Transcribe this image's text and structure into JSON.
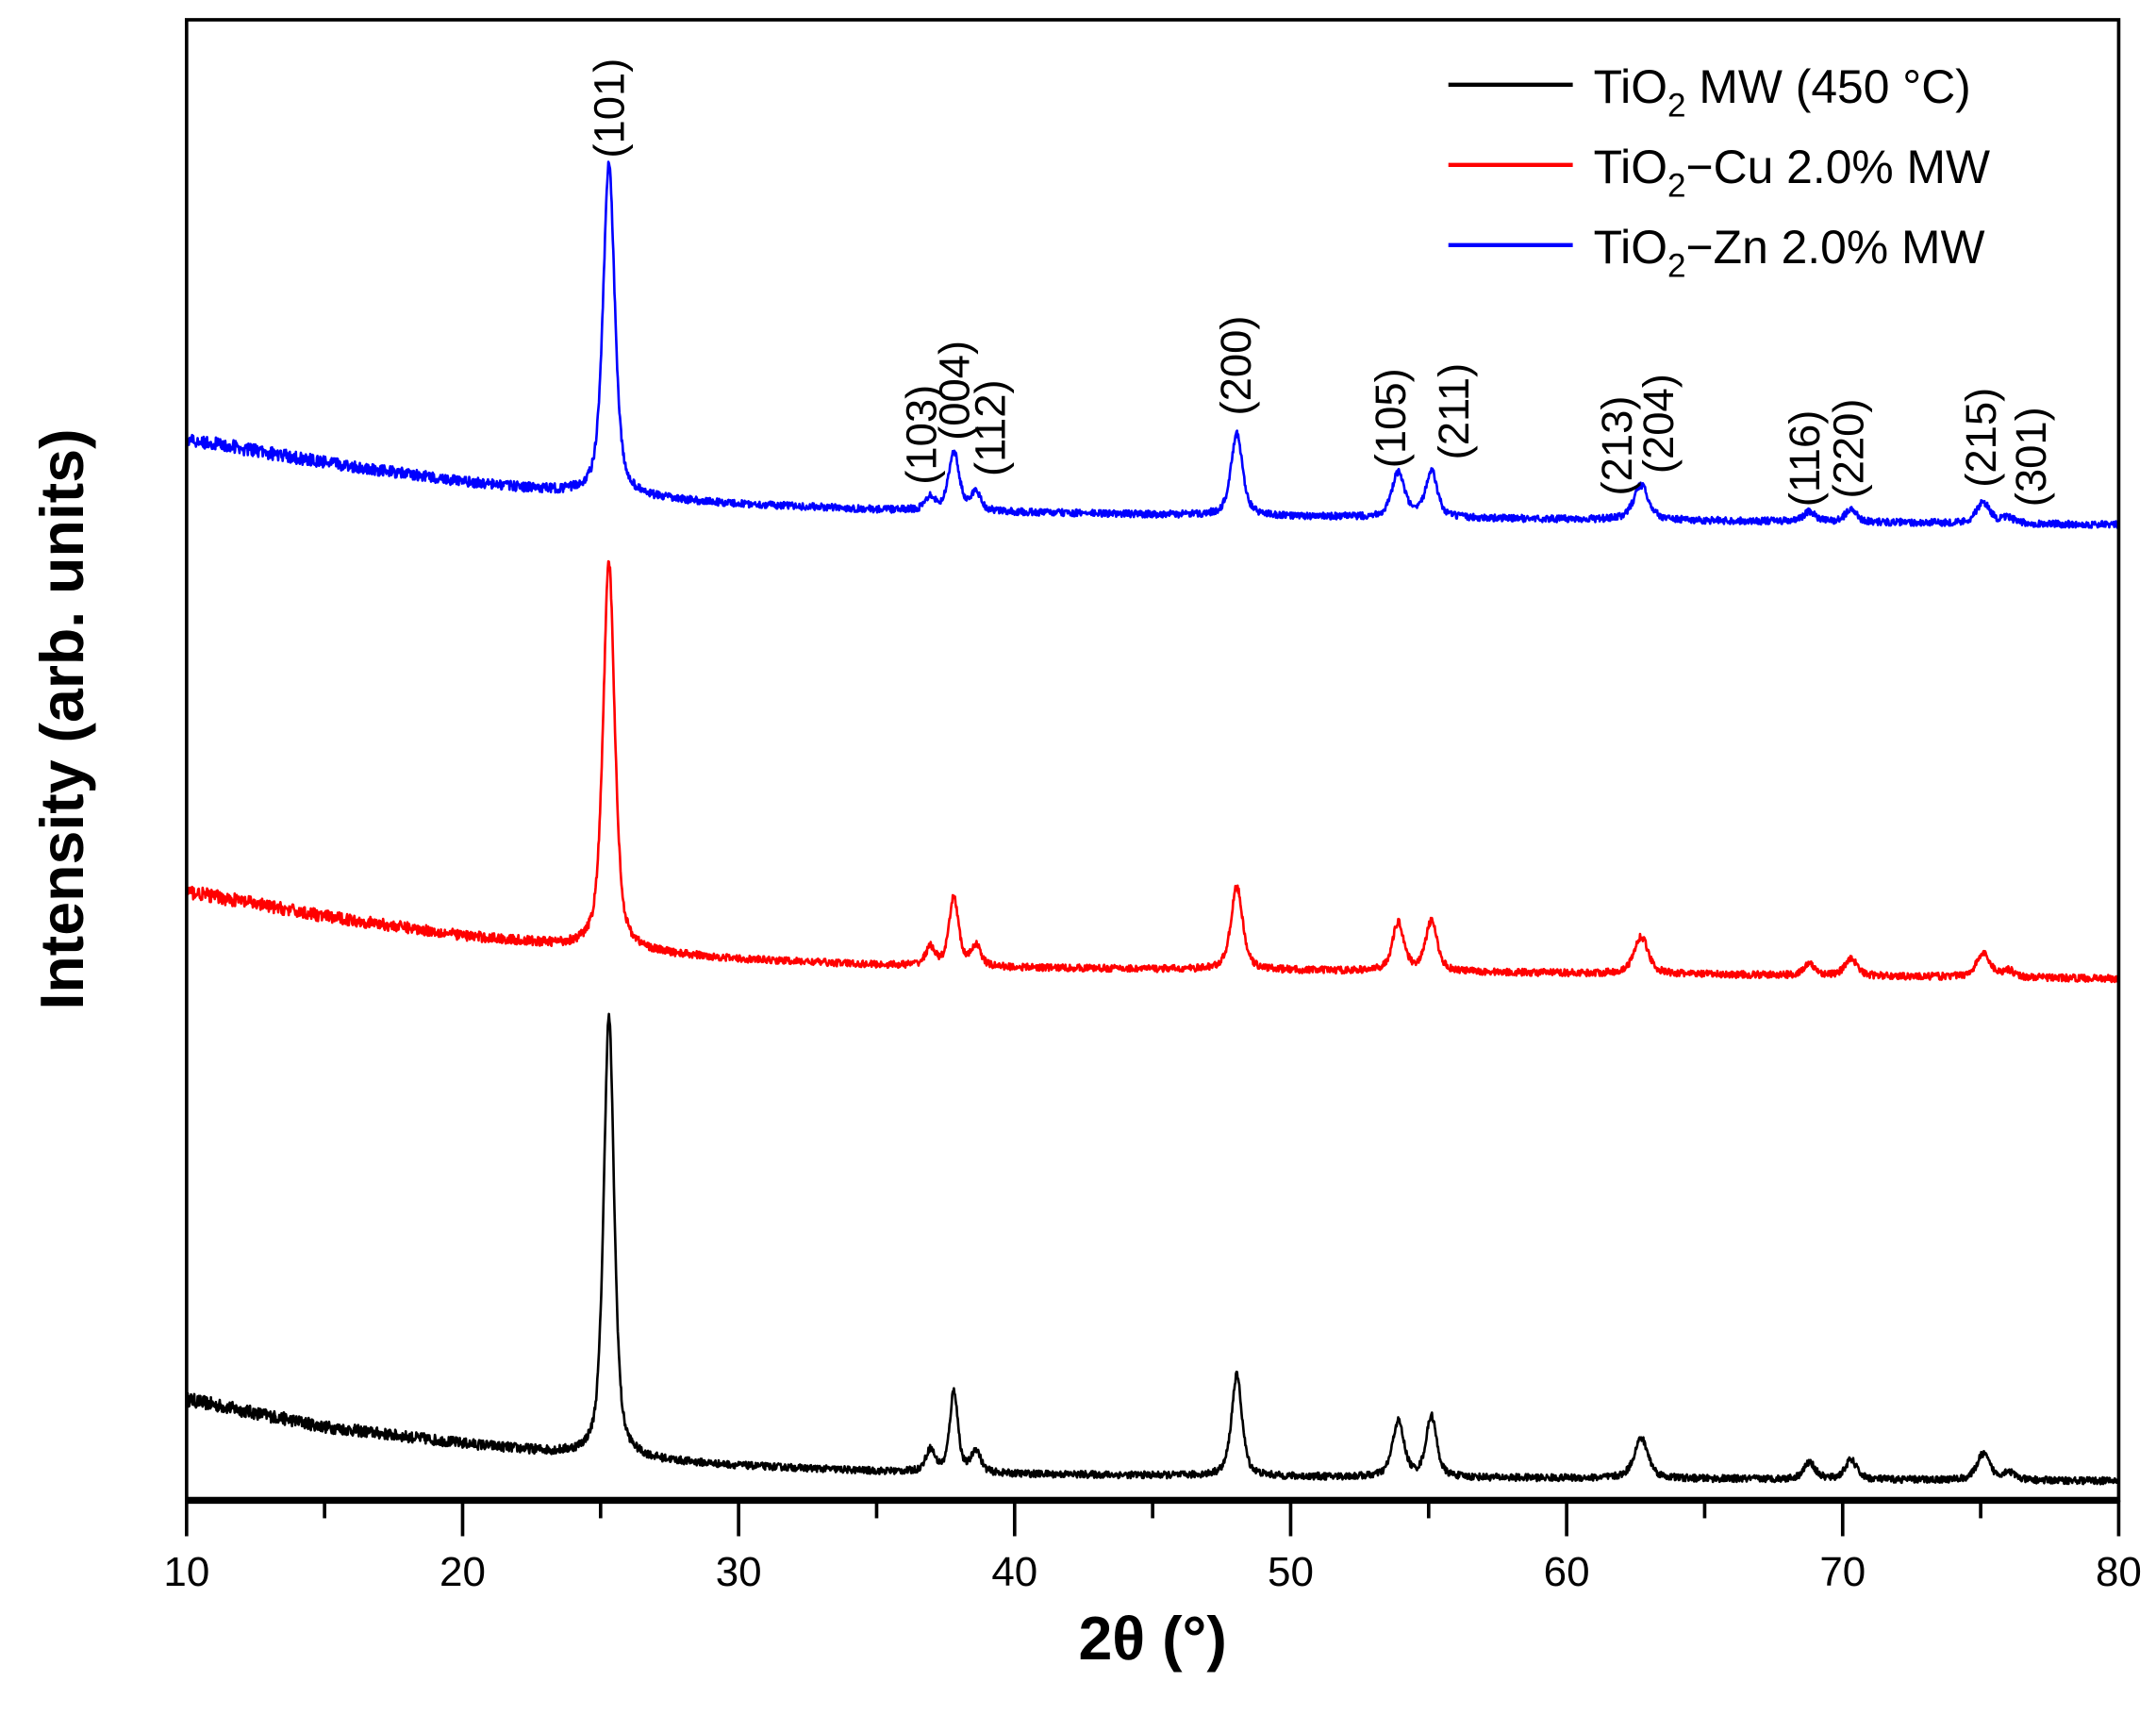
{
  "chart_data": {
    "type": "line",
    "title": "",
    "xlabel": "2θ (°)",
    "ylabel": "Intensity (arb. units)",
    "xlim": [
      10,
      80
    ],
    "ylim": [
      0,
      107
    ],
    "xticks": [
      10,
      20,
      30,
      40,
      50,
      60,
      70,
      80
    ],
    "xminor_ticks": [
      15,
      25,
      35,
      45,
      55,
      65,
      75
    ],
    "yticks_shown": false,
    "grid": false,
    "legend_placement": "top-right",
    "series": [
      {
        "name": "TiO2 MW (450 °C)",
        "legend_parts": [
          "TiO",
          "2",
          " MW (450 °C)"
        ],
        "color": "#000000",
        "baseline": [
          [
            10,
            7.3
          ],
          [
            15,
            5.3
          ],
          [
            20,
            4.1
          ],
          [
            25,
            3.1
          ],
          [
            30,
            2.5
          ],
          [
            35,
            2.1
          ],
          [
            40,
            1.9
          ],
          [
            50,
            1.7
          ],
          [
            60,
            1.6
          ],
          [
            70,
            1.5
          ],
          [
            80,
            1.4
          ]
        ],
        "peaks": [
          [
            25.3,
            31.9,
            0.45
          ],
          [
            36.95,
            1.6,
            0.4
          ],
          [
            37.8,
            5.9,
            0.35
          ],
          [
            38.6,
            1.6,
            0.4
          ],
          [
            48.05,
            7.3,
            0.45
          ],
          [
            53.9,
            4.0,
            0.5
          ],
          [
            55.1,
            4.4,
            0.45
          ],
          [
            62.7,
            2.9,
            0.6
          ],
          [
            68.8,
            1.2,
            0.5
          ],
          [
            70.3,
            1.4,
            0.5
          ],
          [
            75.1,
            1.9,
            0.55
          ],
          [
            76.0,
            0.6,
            0.5
          ]
        ]
      },
      {
        "name": "TiO2−Cu 2.0% MW",
        "legend_parts": [
          "TiO",
          "2",
          "−Cu 2.0% MW"
        ],
        "color": "#ff0000",
        "baseline": [
          [
            10,
            44.0
          ],
          [
            15,
            42.2
          ],
          [
            20,
            40.8
          ],
          [
            25,
            39.8
          ],
          [
            30,
            39.1
          ],
          [
            35,
            38.7
          ],
          [
            40,
            38.5
          ],
          [
            50,
            38.3
          ],
          [
            60,
            38.1
          ],
          [
            70,
            37.9
          ],
          [
            80,
            37.7
          ]
        ],
        "peaks": [
          [
            25.3,
            28.0,
            0.5
          ],
          [
            36.95,
            1.3,
            0.4
          ],
          [
            37.8,
            5.0,
            0.4
          ],
          [
            38.6,
            1.5,
            0.4
          ],
          [
            48.05,
            6.0,
            0.5
          ],
          [
            53.9,
            3.5,
            0.5
          ],
          [
            55.1,
            3.6,
            0.5
          ],
          [
            62.7,
            2.7,
            0.6
          ],
          [
            68.8,
            0.8,
            0.5
          ],
          [
            70.3,
            1.3,
            0.5
          ],
          [
            75.1,
            1.7,
            0.6
          ],
          [
            76.0,
            0.5,
            0.5
          ]
        ]
      },
      {
        "name": "TiO2−Zn 2.0% MW",
        "legend_parts": [
          "TiO",
          "2",
          "−Zn 2.0% MW"
        ],
        "color": "#0000ff",
        "baseline": [
          [
            10,
            76.7
          ],
          [
            15,
            75.0
          ],
          [
            20,
            73.6
          ],
          [
            25,
            72.6
          ],
          [
            30,
            72.0
          ],
          [
            35,
            71.6
          ],
          [
            40,
            71.4
          ],
          [
            50,
            71.1
          ],
          [
            60,
            70.9
          ],
          [
            70,
            70.7
          ],
          [
            80,
            70.5
          ]
        ],
        "peaks": [
          [
            25.3,
            24.0,
            0.5
          ],
          [
            36.95,
            1.0,
            0.4
          ],
          [
            37.8,
            4.3,
            0.45
          ],
          [
            38.6,
            1.4,
            0.4
          ],
          [
            48.05,
            5.9,
            0.5
          ],
          [
            53.9,
            3.2,
            0.55
          ],
          [
            55.1,
            3.4,
            0.5
          ],
          [
            62.7,
            2.5,
            0.65
          ],
          [
            68.8,
            0.7,
            0.5
          ],
          [
            70.3,
            0.9,
            0.5
          ],
          [
            75.1,
            1.5,
            0.6
          ],
          [
            76.0,
            0.4,
            0.5
          ]
        ]
      }
    ],
    "annotations": [
      {
        "label": "(101)",
        "x": 25.3,
        "y": 97.0
      },
      {
        "label": "(103)",
        "x": 36.6,
        "y": 73.4
      },
      {
        "label": "(004)",
        "x": 37.8,
        "y": 76.6
      },
      {
        "label": "(112)",
        "x": 39.1,
        "y": 74.0
      },
      {
        "label": "(200)",
        "x": 48.0,
        "y": 78.4
      },
      {
        "label": "(105)",
        "x": 53.6,
        "y": 74.6
      },
      {
        "label": "(211)",
        "x": 55.9,
        "y": 75.2
      },
      {
        "label": "(213)",
        "x": 61.8,
        "y": 72.6
      },
      {
        "label": "(204)",
        "x": 63.3,
        "y": 74.2
      },
      {
        "label": "(116)",
        "x": 68.6,
        "y": 71.8
      },
      {
        "label": "(220)",
        "x": 70.2,
        "y": 72.4
      },
      {
        "label": "(215)",
        "x": 75.0,
        "y": 73.2
      },
      {
        "label": "(301)",
        "x": 76.8,
        "y": 71.8
      }
    ]
  }
}
